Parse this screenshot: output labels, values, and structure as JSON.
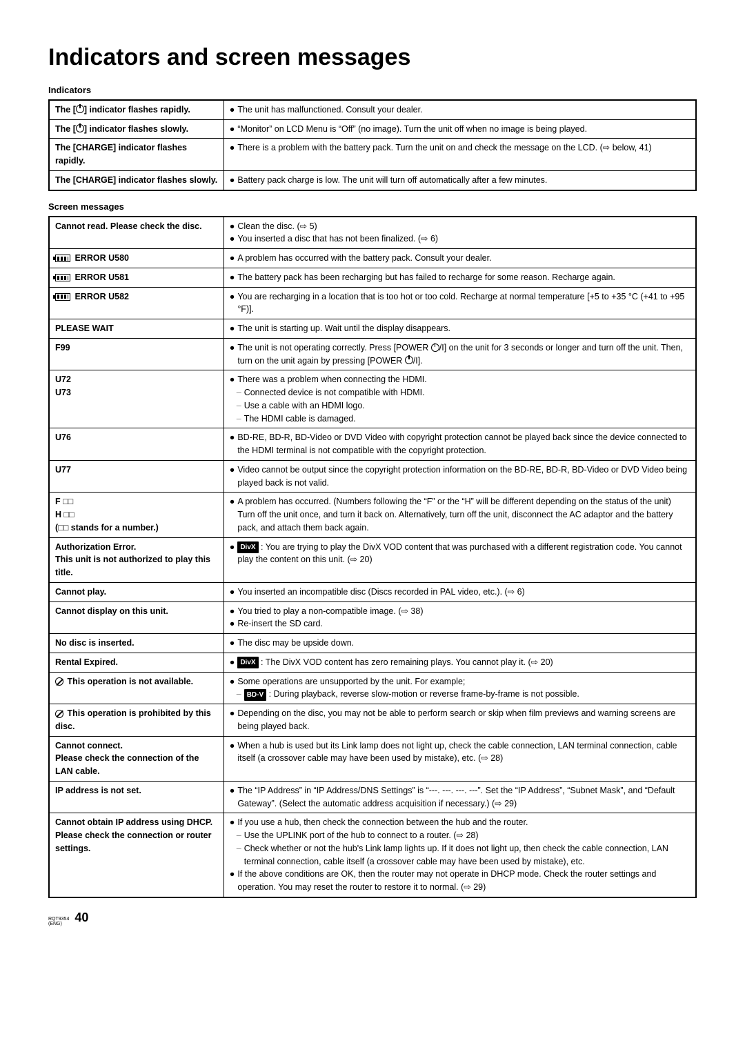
{
  "title": "Indicators and screen messages",
  "section1_label": "Indicators",
  "section2_label": "Screen messages",
  "indicators": [
    {
      "label_pre": "The [",
      "label_icon": "power",
      "label_post": "] indicator flashes rapidly.",
      "lines": [
        {
          "type": "bullet",
          "text": "The unit has malfunctioned. Consult your dealer."
        }
      ]
    },
    {
      "label_pre": "The [",
      "label_icon": "power",
      "label_post": "] indicator flashes slowly.",
      "lines": [
        {
          "type": "bullet",
          "text": "“Monitor” on LCD Menu is “Off” (no image). Turn the unit off when no image is being played."
        }
      ]
    },
    {
      "label_plain": "The [CHARGE] indicator flashes rapidly.",
      "lines": [
        {
          "type": "bullet",
          "text": "There is a problem with the battery pack. Turn the unit on and check the message on the LCD. (⇨ below, 41)"
        }
      ]
    },
    {
      "label_plain": "The [CHARGE] indicator flashes slowly.",
      "lines": [
        {
          "type": "bullet",
          "text": "Battery pack charge is low. The unit will turn off automatically after a few minutes."
        }
      ]
    }
  ],
  "messages": [
    {
      "label_plain": "Cannot read. Please check the disc.",
      "lines": [
        {
          "type": "bullet",
          "text": "Clean the disc. (⇨ 5)"
        },
        {
          "type": "bullet",
          "text": "You inserted a disc that has not been finalized. (⇨ 6)"
        }
      ]
    },
    {
      "label_icon": "battery",
      "label_post": " ERROR U580",
      "lines": [
        {
          "type": "bullet",
          "text": "A problem has occurred with the battery pack. Consult your dealer."
        }
      ]
    },
    {
      "label_icon": "battery",
      "label_post": " ERROR U581",
      "lines": [
        {
          "type": "bullet",
          "text": "The battery pack has been recharging but has failed to recharge for some reason. Recharge again."
        }
      ]
    },
    {
      "label_icon": "battery",
      "label_post": " ERROR U582",
      "lines": [
        {
          "type": "bullet",
          "text": "You are recharging in a location that is too hot or too cold. Recharge at normal temperature [+5 to +35 °C (+41 to +95 °F)]."
        }
      ]
    },
    {
      "label_plain": "PLEASE WAIT",
      "lines": [
        {
          "type": "bullet",
          "text": "The unit is starting up. Wait until the display disappears."
        }
      ]
    },
    {
      "label_plain": "F99",
      "lines": [
        {
          "type": "bullet",
          "html": "The unit is not operating correctly. Press [POWER <span class=\"power-icon\" data-name=\"power-icon\" data-interactable=\"false\"></span>/I] on the unit for 3 seconds or longer and turn off the unit. Then, turn on the unit again by pressing [POWER <span class=\"power-icon\" data-name=\"power-icon\" data-interactable=\"false\"></span>/I]."
        }
      ]
    },
    {
      "label_lines": [
        "U72",
        "U73"
      ],
      "lines": [
        {
          "type": "bullet",
          "text": "There was a problem when connecting the HDMI."
        },
        {
          "type": "dash",
          "text": "Connected device is not compatible with HDMI."
        },
        {
          "type": "dash",
          "text": "Use a cable with an HDMI logo."
        },
        {
          "type": "dash",
          "text": "The HDMI cable is damaged."
        }
      ]
    },
    {
      "label_plain": "U76",
      "lines": [
        {
          "type": "bullet",
          "text": "BD-RE, BD-R, BD-Video or DVD Video with copyright protection cannot be played back since the device connected to the HDMI terminal is not compatible with the copyright protection."
        }
      ]
    },
    {
      "label_plain": "U77",
      "lines": [
        {
          "type": "bullet",
          "text": "Video cannot be output since the copyright protection information on the BD-RE, BD-R, BD-Video or DVD Video being played back is not valid."
        }
      ]
    },
    {
      "label_lines": [
        "F □□",
        "H □□",
        "(□□ stands for a number.)"
      ],
      "lines": [
        {
          "type": "bullet",
          "text": "A problem has occurred. (Numbers following the “F” or the “H” will be different depending on the status of the unit) Turn off the unit once, and turn it back on. Alternatively, turn off the unit, disconnect the AC adaptor and the battery pack, and attach them back again."
        }
      ]
    },
    {
      "label_lines": [
        "Authorization Error.",
        "This unit is not authorized to play this title."
      ],
      "lines": [
        {
          "type": "bullet",
          "html": "<span class=\"tag\" data-name=\"divx-tag\" data-interactable=\"false\">DivX</span> : You are trying to play the DivX VOD content that was purchased with a different registration code. You cannot play the content on this unit.  (⇨ 20)"
        }
      ]
    },
    {
      "label_plain": "Cannot play.",
      "lines": [
        {
          "type": "bullet",
          "text": "You inserted an incompatible disc (Discs recorded in PAL video, etc.). (⇨ 6)"
        }
      ]
    },
    {
      "label_plain": "Cannot display on this unit.",
      "lines": [
        {
          "type": "bullet",
          "text": "You tried to play a non-compatible image. (⇨ 38)"
        },
        {
          "type": "bullet",
          "text": "Re-insert the SD card."
        }
      ]
    },
    {
      "label_plain": "No disc is inserted.",
      "lines": [
        {
          "type": "bullet",
          "text": "The disc may be upside down."
        }
      ]
    },
    {
      "label_plain": "Rental Expired.",
      "lines": [
        {
          "type": "bullet",
          "html": "<span class=\"tag\" data-name=\"divx-tag\" data-interactable=\"false\">DivX</span> : The DivX VOD content has zero remaining plays. You cannot play it.  (⇨ 20)"
        }
      ]
    },
    {
      "label_icon": "prohibit",
      "label_post": " This operation is not available.",
      "lines": [
        {
          "type": "bullet",
          "text": "Some operations are unsupported by the unit. For example;"
        },
        {
          "type": "dash",
          "html": "<span class=\"tag\" data-name=\"bdv-tag\" data-interactable=\"false\">BD-V</span> : During playback, reverse slow-motion or reverse frame-by-frame is not possible."
        }
      ]
    },
    {
      "label_icon": "prohibit",
      "label_post": " This operation is prohibited by this disc.",
      "lines": [
        {
          "type": "bullet",
          "text": "Depending on the disc, you may not be able to perform search or skip when film previews and warning screens are being played back."
        }
      ]
    },
    {
      "label_lines": [
        "Cannot connect.",
        "Please check the connection of the LAN cable."
      ],
      "lines": [
        {
          "type": "bullet",
          "text": "When a hub is used but its Link lamp does not light up, check the cable connection, LAN terminal connection, cable itself (a crossover cable may have been used by mistake), etc. (⇨ 28)"
        }
      ]
    },
    {
      "label_plain": "IP address is not set.",
      "lines": [
        {
          "type": "bullet",
          "text": "The “IP Address” in “IP Address/DNS Settings” is “---. ---. ---. ---”. Set the “IP Address”, “Subnet Mask”, and “Default Gateway”. (Select the automatic address acquisition if necessary.) (⇨ 29)"
        }
      ]
    },
    {
      "label_lines": [
        "Cannot obtain IP address using DHCP.",
        "Please check the connection or router settings."
      ],
      "lines": [
        {
          "type": "bullet",
          "text": "If you use a hub, then check the connection between the hub and the router."
        },
        {
          "type": "dash",
          "text": "Use the UPLINK port of the hub to connect to a router. (⇨ 28)"
        },
        {
          "type": "dash",
          "text": "Check whether or not the hub's Link lamp lights up. If it does not light up, then check the cable connection, LAN terminal connection, cable itself (a crossover cable may have been used by mistake), etc."
        },
        {
          "type": "bullet",
          "text": "If the above conditions are OK, then the router may not operate in DHCP mode. Check the router settings and operation. You may reset the router to restore it to normal. (⇨ 29)"
        }
      ]
    }
  ],
  "footer_small1": "RQT9354",
  "footer_small2": "(ENG)",
  "page_number": "40"
}
